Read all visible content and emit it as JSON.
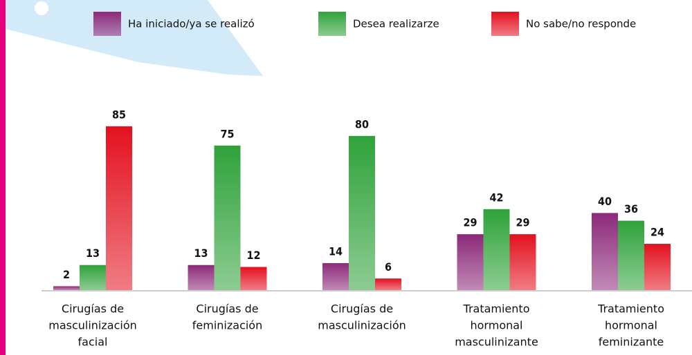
{
  "chart_data": {
    "type": "bar",
    "categories": [
      [
        "Cirugías de",
        "masculinización",
        "facial"
      ],
      [
        "Cirugías de",
        "feminización"
      ],
      [
        "Cirugías de",
        "masculinización"
      ],
      [
        "Tratamiento",
        "hormonal",
        "masculinizante"
      ],
      [
        "Tratamiento",
        "hormonal",
        "feminizante"
      ]
    ],
    "series": [
      {
        "name": "Ha iniciado/ya se realizó",
        "color": "#8c2a7a",
        "values": [
          2,
          13,
          14,
          29,
          40
        ]
      },
      {
        "name": "Desea realizarze",
        "color": "#2fa23a",
        "values": [
          13,
          75,
          80,
          42,
          36
        ]
      },
      {
        "name": "No sabe/no responde",
        "color": "#e3111f",
        "values": [
          85,
          12,
          6,
          29,
          24
        ]
      }
    ],
    "legend": "top"
  }
}
